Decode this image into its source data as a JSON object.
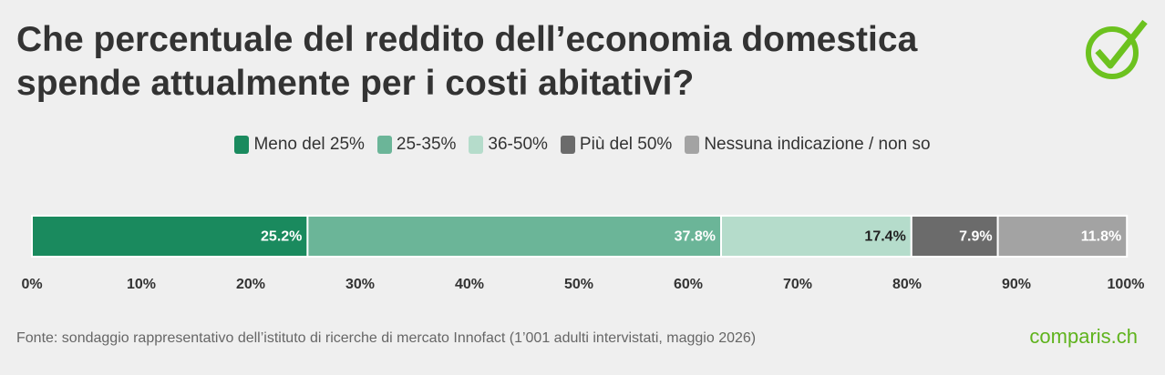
{
  "chart_data": {
    "type": "stacked-bar-horizontal",
    "title": "Che percentuale del reddito dell’economia domestica spende attualmente per i costi abitativi?",
    "series": [
      {
        "name": "Meno del 25%",
        "color": "#1a8a5e",
        "values": [
          25.2
        ],
        "value_labels": [
          "25.2%"
        ]
      },
      {
        "name": "25-35%",
        "color": "#6bb598",
        "values": [
          37.8
        ],
        "value_labels": [
          "37.8%"
        ]
      },
      {
        "name": "36-50%",
        "color": "#b5dccb",
        "values": [
          17.4
        ],
        "value_labels": [
          "17.4%"
        ]
      },
      {
        "name": "Più del 50%",
        "color": "#6b6b6b",
        "values": [
          7.9
        ],
        "value_labels": [
          "7.9%"
        ]
      },
      {
        "name": "Nessuna indicazione / non so",
        "color": "#a3a3a3",
        "values": [
          11.8
        ],
        "value_labels": [
          "11.8%"
        ]
      }
    ],
    "xlim": [
      0,
      100
    ],
    "xticks": [
      {
        "value": 0,
        "label": "0%"
      },
      {
        "value": 10,
        "label": "10%"
      },
      {
        "value": 20,
        "label": "20%"
      },
      {
        "value": 30,
        "label": "30%"
      },
      {
        "value": 40,
        "label": "40%"
      },
      {
        "value": 50,
        "label": "50%"
      },
      {
        "value": 60,
        "label": "60%"
      },
      {
        "value": 70,
        "label": "70%"
      },
      {
        "value": 80,
        "label": "80%"
      },
      {
        "value": 90,
        "label": "90%"
      },
      {
        "value": 100,
        "label": "100%"
      }
    ],
    "legend": "top",
    "source": "Fonte: sondaggio rappresentativo dell’istituto di ricerche di mercato Innofact (1’001 adulti intervistati, maggio 2026)",
    "logo": "comparis.ch"
  }
}
